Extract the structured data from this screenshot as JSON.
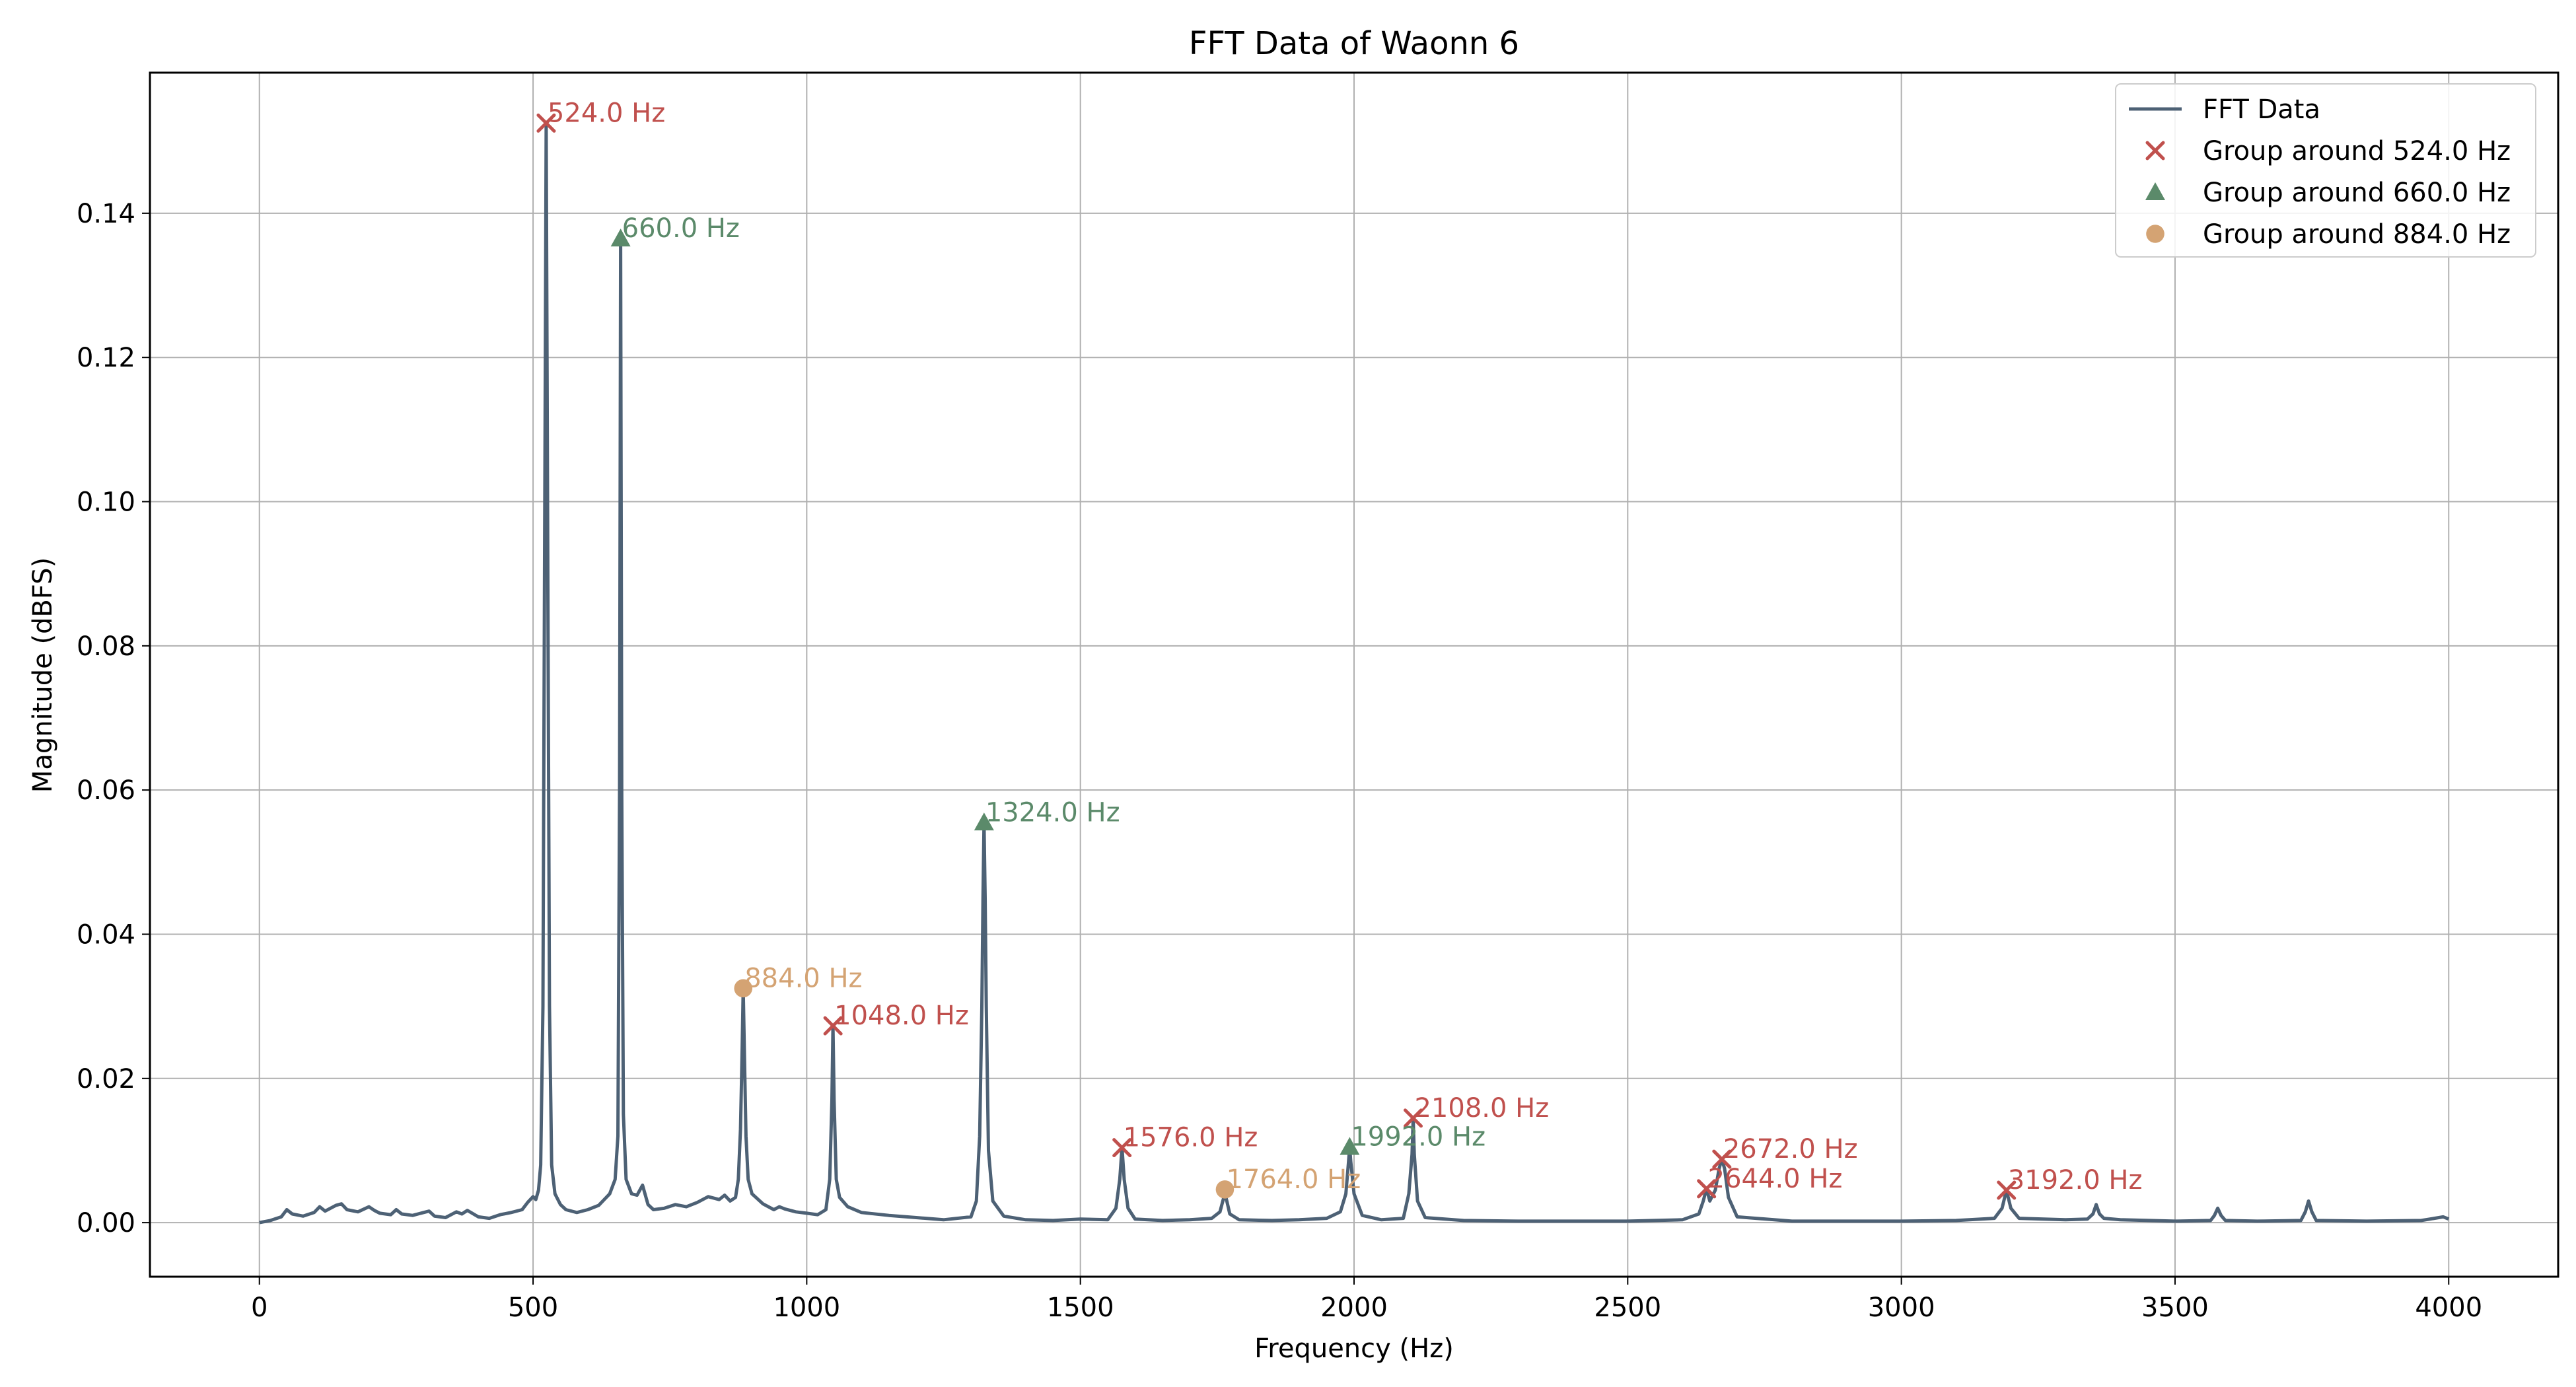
{
  "chart_data": {
    "type": "line",
    "title": "FFT Data of Waonn 6",
    "xlabel": "Frequency (Hz)",
    "ylabel": "Magnitude (dBFS)",
    "xlim": [
      -200,
      4200
    ],
    "ylim": [
      -0.0075,
      0.1595
    ],
    "xticks": [
      0,
      500,
      1000,
      1500,
      2000,
      2500,
      3000,
      3500,
      4000
    ],
    "xtick_labels": [
      "0",
      "500",
      "1000",
      "1500",
      "2000",
      "2500",
      "3000",
      "3500",
      "4000"
    ],
    "yticks": [
      0.0,
      0.02,
      0.04,
      0.06,
      0.08,
      0.1,
      0.12,
      0.14
    ],
    "ytick_labels": [
      "0.00",
      "0.02",
      "0.04",
      "0.06",
      "0.08",
      "0.10",
      "0.12",
      "0.14"
    ],
    "grid": true,
    "legend_position": "top-right",
    "line_color": "#4d6175",
    "series": [
      {
        "name": "FFT Data",
        "kind": "line",
        "color": "#4d6175",
        "x": [
          0,
          20,
          40,
          50,
          60,
          80,
          100,
          110,
          120,
          140,
          150,
          160,
          180,
          200,
          210,
          220,
          240,
          250,
          260,
          280,
          300,
          310,
          320,
          340,
          360,
          370,
          380,
          400,
          420,
          440,
          460,
          480,
          490,
          500,
          505,
          510,
          514,
          518,
          521,
          524,
          527,
          530,
          534,
          540,
          550,
          560,
          580,
          600,
          620,
          630,
          640,
          650,
          655,
          658,
          660,
          662,
          665,
          670,
          680,
          690,
          700,
          710,
          720,
          740,
          760,
          780,
          800,
          820,
          840,
          850,
          860,
          870,
          875,
          879,
          882,
          884,
          886,
          889,
          893,
          900,
          920,
          940,
          950,
          960,
          980,
          1000,
          1020,
          1035,
          1042,
          1046,
          1048,
          1050,
          1054,
          1060,
          1075,
          1100,
          1150,
          1200,
          1250,
          1300,
          1310,
          1316,
          1320,
          1322,
          1324,
          1326,
          1328,
          1332,
          1340,
          1360,
          1400,
          1450,
          1500,
          1550,
          1565,
          1572,
          1576,
          1580,
          1587,
          1600,
          1650,
          1700,
          1740,
          1755,
          1762,
          1764,
          1766,
          1773,
          1790,
          1850,
          1900,
          1950,
          1975,
          1985,
          1990,
          1992,
          1994,
          2000,
          2015,
          2050,
          2090,
          2100,
          2106,
          2108,
          2110,
          2116,
          2130,
          2200,
          2300,
          2400,
          2500,
          2600,
          2630,
          2638,
          2644,
          2650,
          2660,
          2667,
          2672,
          2677,
          2684,
          2700,
          2800,
          2900,
          3000,
          3100,
          3170,
          3184,
          3192,
          3200,
          3215,
          3300,
          3340,
          3350,
          3356,
          3362,
          3370,
          3400,
          3500,
          3565,
          3572,
          3578,
          3584,
          3592,
          3650,
          3730,
          3738,
          3744,
          3750,
          3758,
          3850,
          3950,
          3990,
          4000
        ],
        "y": [
          0.0,
          0.0003,
          0.0008,
          0.0018,
          0.0012,
          0.0009,
          0.0014,
          0.0022,
          0.0016,
          0.0024,
          0.0026,
          0.0018,
          0.0015,
          0.0022,
          0.0017,
          0.0013,
          0.0011,
          0.0018,
          0.0012,
          0.001,
          0.0014,
          0.0016,
          0.0009,
          0.0007,
          0.0015,
          0.0012,
          0.0017,
          0.0008,
          0.0006,
          0.0011,
          0.0014,
          0.0018,
          0.0028,
          0.0036,
          0.0032,
          0.0045,
          0.008,
          0.03,
          0.09,
          0.1525,
          0.09,
          0.03,
          0.008,
          0.004,
          0.0025,
          0.0018,
          0.0014,
          0.0018,
          0.0024,
          0.0032,
          0.004,
          0.006,
          0.012,
          0.06,
          0.1365,
          0.06,
          0.015,
          0.006,
          0.004,
          0.0038,
          0.0052,
          0.0025,
          0.0018,
          0.002,
          0.0025,
          0.0022,
          0.0028,
          0.0036,
          0.0032,
          0.0038,
          0.003,
          0.0035,
          0.006,
          0.013,
          0.024,
          0.0325,
          0.024,
          0.012,
          0.006,
          0.004,
          0.0026,
          0.0018,
          0.0022,
          0.0019,
          0.0015,
          0.0013,
          0.0011,
          0.0018,
          0.006,
          0.017,
          0.0273,
          0.017,
          0.006,
          0.0035,
          0.0022,
          0.0014,
          0.001,
          0.0007,
          0.0004,
          0.0008,
          0.003,
          0.012,
          0.03,
          0.045,
          0.0555,
          0.045,
          0.03,
          0.01,
          0.003,
          0.0009,
          0.0004,
          0.0003,
          0.0005,
          0.0004,
          0.002,
          0.006,
          0.0104,
          0.006,
          0.002,
          0.0005,
          0.0003,
          0.0004,
          0.0006,
          0.0015,
          0.0035,
          0.0046,
          0.0035,
          0.0012,
          0.0004,
          0.0003,
          0.0004,
          0.0006,
          0.0015,
          0.004,
          0.0085,
          0.0105,
          0.0085,
          0.004,
          0.001,
          0.0004,
          0.0006,
          0.004,
          0.0095,
          0.0145,
          0.0095,
          0.003,
          0.0007,
          0.0003,
          0.0002,
          0.0002,
          0.0002,
          0.0004,
          0.0012,
          0.003,
          0.0047,
          0.003,
          0.0045,
          0.0075,
          0.0088,
          0.0075,
          0.0035,
          0.0008,
          0.0002,
          0.0002,
          0.0002,
          0.0003,
          0.0006,
          0.002,
          0.0045,
          0.002,
          0.0006,
          0.0004,
          0.0005,
          0.0012,
          0.0025,
          0.0012,
          0.0006,
          0.0004,
          0.0002,
          0.0003,
          0.001,
          0.002,
          0.001,
          0.0003,
          0.0002,
          0.0003,
          0.0015,
          0.003,
          0.0015,
          0.0003,
          0.0002,
          0.0003,
          0.0008,
          0.0005
        ]
      },
      {
        "name": "Group around 524.0 Hz",
        "kind": "marker",
        "marker": "x",
        "color": "#c0504d",
        "x": [
          524,
          1048,
          1576,
          2108,
          2644,
          2672,
          3192
        ],
        "y": [
          0.1525,
          0.0273,
          0.0104,
          0.0145,
          0.0047,
          0.0088,
          0.0045
        ],
        "labels": [
          "524.0 Hz",
          "1048.0 Hz",
          "1576.0 Hz",
          "2108.0 Hz",
          "2644.0 Hz",
          "2672.0 Hz",
          "3192.0 Hz"
        ]
      },
      {
        "name": "Group around 660.0 Hz",
        "kind": "marker",
        "marker": "triangle",
        "color": "#5b8a6a",
        "x": [
          660,
          1324,
          1992
        ],
        "y": [
          0.1365,
          0.0555,
          0.0105
        ],
        "labels": [
          "660.0 Hz",
          "1324.0 Hz",
          "1992.0 Hz"
        ]
      },
      {
        "name": "Group around 884.0 Hz",
        "kind": "marker",
        "marker": "circle",
        "color": "#d4a373",
        "x": [
          884,
          1764
        ],
        "y": [
          0.0325,
          0.0046
        ],
        "labels": [
          "884.0 Hz",
          "1764.0 Hz"
        ]
      }
    ]
  }
}
